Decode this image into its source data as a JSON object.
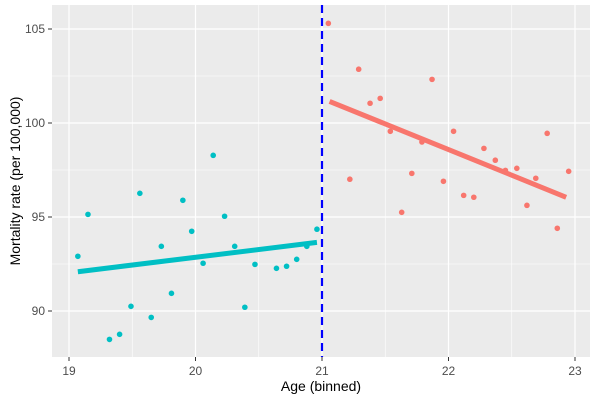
{
  "chart_data": {
    "type": "scatter",
    "title": "",
    "xlabel": "Age (binned)",
    "ylabel": "Mortality rate (per 100,000)",
    "xlim": [
      18.85,
      23.1
    ],
    "ylim": [
      87.6,
      106.3
    ],
    "x_ticks": [
      19,
      20,
      21,
      22,
      23
    ],
    "y_ticks": [
      90,
      95,
      100,
      105
    ],
    "grid": true,
    "cutoff": {
      "x": 21,
      "color": "#0000FF",
      "style": "dashed"
    },
    "series": [
      {
        "color": "#00BFC4",
        "points": [
          [
            19.07,
            92.91
          ],
          [
            19.15,
            95.14
          ],
          [
            19.32,
            88.49
          ],
          [
            19.4,
            88.76
          ],
          [
            19.49,
            90.25
          ],
          [
            19.56,
            96.26
          ],
          [
            19.65,
            89.66
          ],
          [
            19.73,
            93.44
          ],
          [
            19.81,
            90.94
          ],
          [
            19.9,
            95.89
          ],
          [
            19.97,
            94.24
          ],
          [
            20.06,
            92.54
          ],
          [
            20.14,
            98.28
          ],
          [
            20.23,
            95.04
          ],
          [
            20.31,
            93.44
          ],
          [
            20.39,
            90.2
          ],
          [
            20.47,
            92.48
          ],
          [
            20.64,
            92.27
          ],
          [
            20.72,
            92.38
          ],
          [
            20.8,
            92.75
          ],
          [
            20.88,
            93.44
          ],
          [
            20.96,
            94.35
          ]
        ],
        "fit": [
          [
            19.07,
            92.09
          ],
          [
            20.96,
            93.65
          ]
        ]
      },
      {
        "color": "#F8766D",
        "points": [
          [
            21.05,
            105.3
          ],
          [
            21.22,
            97.01
          ],
          [
            21.29,
            102.86
          ],
          [
            21.38,
            101.05
          ],
          [
            21.46,
            101.31
          ],
          [
            21.54,
            99.56
          ],
          [
            21.63,
            95.25
          ],
          [
            21.71,
            97.32
          ],
          [
            21.79,
            98.99
          ],
          [
            21.87,
            102.32
          ],
          [
            21.96,
            96.9
          ],
          [
            22.04,
            99.56
          ],
          [
            22.12,
            96.15
          ],
          [
            22.2,
            96.05
          ],
          [
            22.28,
            98.65
          ],
          [
            22.37,
            98.02
          ],
          [
            22.45,
            97.48
          ],
          [
            22.54,
            97.59
          ],
          [
            22.62,
            95.62
          ],
          [
            22.69,
            97.06
          ],
          [
            22.78,
            99.45
          ],
          [
            22.86,
            94.4
          ],
          [
            22.95,
            97.43
          ]
        ],
        "fit": [
          [
            21.06,
            101.15
          ],
          [
            22.93,
            96.05
          ]
        ]
      }
    ]
  }
}
